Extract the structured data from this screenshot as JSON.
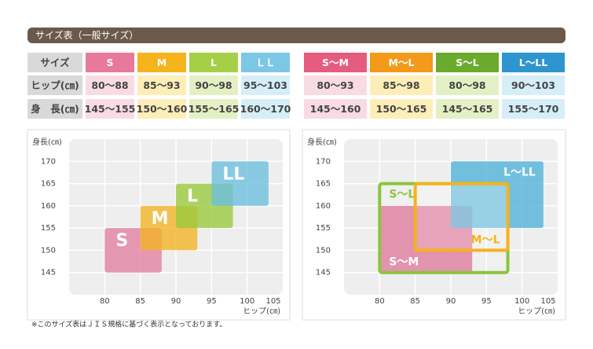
{
  "header": {
    "title": "サイズ表（一般サイズ）"
  },
  "tables": [
    {
      "colors": [
        "#e8799a",
        "#f5b31c",
        "#a6cf48",
        "#7cc7e6"
      ],
      "light": [
        "#f9dbe3",
        "#fdeeb8",
        "#e3f0c4",
        "#d5eef8"
      ],
      "rows": [
        [
          "サイズ",
          "S",
          "M",
          "L",
          "ＬＬ"
        ],
        [
          "ヒップ(㎝)",
          "80～88",
          "85～93",
          "90～98",
          "95～103"
        ],
        [
          "身　長(㎝)",
          "145～155",
          "150～160",
          "155～165",
          "160～170"
        ]
      ]
    },
    {
      "colors": [
        "#e55c7e",
        "#f39a1a",
        "#6aab2d",
        "#2f95cf"
      ],
      "light": [
        "#f9dbe3",
        "#fdeeb8",
        "#e3f0c4",
        "#d5eef8"
      ],
      "rows": [
        [
          "S～M",
          "M～L",
          "S～L",
          "L～LL"
        ],
        [
          "80～93",
          "85～98",
          "80～98",
          "90～103"
        ],
        [
          "145～160",
          "150～165",
          "145～165",
          "155～170"
        ]
      ]
    }
  ],
  "chart_data": [
    {
      "type": "range",
      "ylabel": "身長(㎝)",
      "xlabel": "ヒップ(㎝)",
      "xlim": [
        75,
        105
      ],
      "ylim": [
        140,
        175
      ],
      "xticks": [
        80,
        85,
        90,
        95,
        100,
        105
      ],
      "yticks": [
        145,
        150,
        155,
        160,
        165,
        170
      ],
      "series": [
        {
          "name": "S",
          "color": "#e07fa0",
          "x": [
            80,
            88
          ],
          "y": [
            145,
            155
          ],
          "label_pos": "top-left"
        },
        {
          "name": "M",
          "color": "#f2b321",
          "x": [
            85,
            93
          ],
          "y": [
            150,
            160
          ],
          "label_pos": "top-left"
        },
        {
          "name": "L",
          "color": "#98c93c",
          "x": [
            90,
            98
          ],
          "y": [
            155,
            165
          ],
          "label_pos": "top-left"
        },
        {
          "name": "LL",
          "color": "#6cbfdf",
          "x": [
            95,
            103
          ],
          "y": [
            160,
            170
          ],
          "label_pos": "top-left"
        }
      ]
    },
    {
      "type": "range",
      "ylabel": "身長(㎝)",
      "xlabel": "ヒップ(㎝)",
      "xlim": [
        75,
        105
      ],
      "ylim": [
        140,
        175
      ],
      "xticks": [
        80,
        85,
        90,
        95,
        100,
        105
      ],
      "yticks": [
        145,
        150,
        155,
        160,
        165,
        170
      ],
      "series": [
        {
          "name": "S～M",
          "color": "#d9628a",
          "x": [
            80,
            93
          ],
          "y": [
            145,
            160
          ],
          "label_pos": "bottom-left"
        },
        {
          "name": "L～LL",
          "color": "#4eb2d8",
          "x": [
            90,
            103
          ],
          "y": [
            155,
            170
          ],
          "label_pos": "top-right"
        },
        {
          "name": "S～L",
          "color": "#8cc43c",
          "x": [
            80,
            98
          ],
          "y": [
            145,
            165
          ],
          "label_pos": "top-left",
          "outline": true
        },
        {
          "name": "M～L",
          "color": "#f5b31c",
          "x": [
            85,
            98
          ],
          "y": [
            150,
            165
          ],
          "label_pos": "bottom-right",
          "outline": true
        }
      ]
    }
  ],
  "footnote": "※このサイズ表はＪＩＳ規格に基づく表示となっております。"
}
